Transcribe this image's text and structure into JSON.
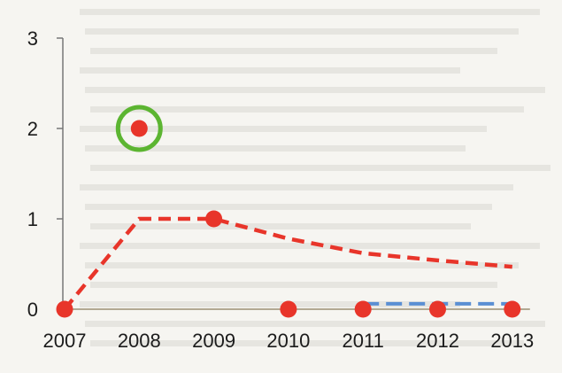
{
  "chart_data": {
    "type": "line",
    "title": "",
    "xlabel": "",
    "ylabel": "",
    "x": [
      "2007",
      "2008",
      "2009",
      "2010",
      "2011",
      "2012",
      "2013"
    ],
    "ylim": [
      0,
      3
    ],
    "yticks": [
      "0",
      "1",
      "2",
      "3"
    ],
    "grid": false,
    "legend": "none",
    "lines": [
      {
        "style": "dashed",
        "color": "#e8352a",
        "points": [
          [
            2007,
            0
          ],
          [
            2008,
            1
          ],
          [
            2009,
            1
          ],
          [
            2010,
            0.78
          ],
          [
            2011,
            0.62
          ],
          [
            2012,
            0.54
          ],
          [
            2013,
            0.47
          ]
        ]
      },
      {
        "style": "dashed",
        "color": "#5b8fd3",
        "points": [
          [
            2011,
            0.06
          ],
          [
            2013,
            0.06
          ]
        ]
      }
    ],
    "markers": {
      "color": "#e8352a",
      "points": [
        [
          2007,
          0
        ],
        [
          2008,
          2
        ],
        [
          2009,
          1
        ],
        [
          2010,
          0
        ],
        [
          2011,
          0
        ],
        [
          2012,
          0
        ],
        [
          2013,
          0
        ]
      ]
    },
    "highlight": {
      "x": 2008,
      "y": 2,
      "color": "#5cb531"
    }
  }
}
